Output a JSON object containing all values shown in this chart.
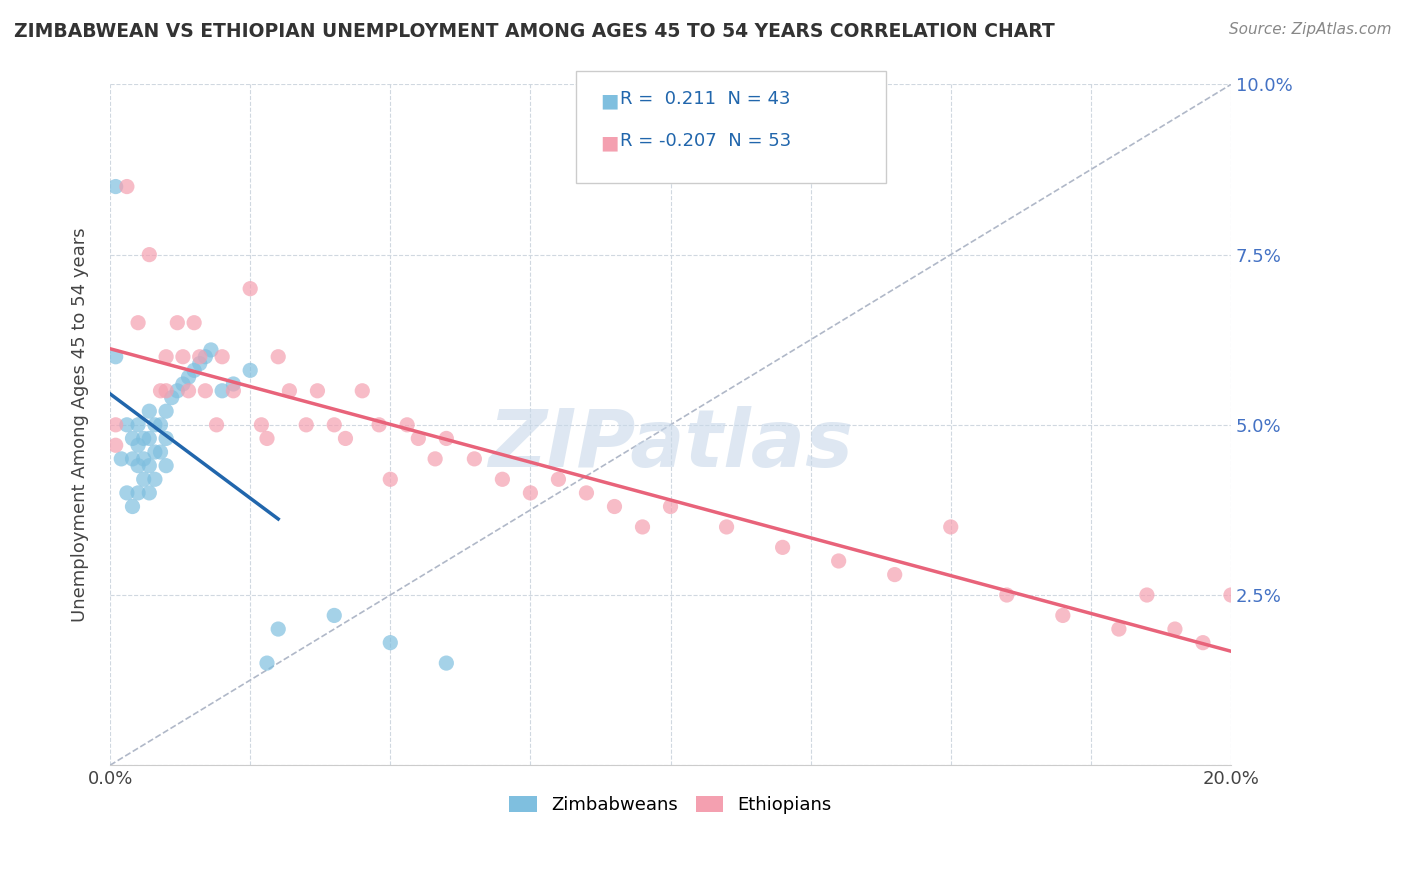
{
  "title": "ZIMBABWEAN VS ETHIOPIAN UNEMPLOYMENT AMONG AGES 45 TO 54 YEARS CORRELATION CHART",
  "source": "Source: ZipAtlas.com",
  "ylabel": "Unemployment Among Ages 45 to 54 years",
  "xlim": [
    0,
    0.2
  ],
  "ylim": [
    0,
    0.1
  ],
  "zimbabwe_color": "#7fbfdf",
  "ethiopia_color": "#f4a0b0",
  "zimbabwe_line_color": "#2166ac",
  "ethiopia_line_color": "#e8637a",
  "zimbabwe_R": 0.211,
  "zimbabwe_N": 43,
  "ethiopia_R": -0.207,
  "ethiopia_N": 53,
  "watermark_color": "#c8d8ea",
  "zimbabwe_x": [
    0.001,
    0.001,
    0.002,
    0.003,
    0.003,
    0.004,
    0.004,
    0.004,
    0.005,
    0.005,
    0.005,
    0.005,
    0.006,
    0.006,
    0.006,
    0.007,
    0.007,
    0.007,
    0.007,
    0.008,
    0.008,
    0.008,
    0.009,
    0.009,
    0.01,
    0.01,
    0.01,
    0.011,
    0.012,
    0.013,
    0.014,
    0.015,
    0.016,
    0.017,
    0.018,
    0.02,
    0.022,
    0.025,
    0.028,
    0.03,
    0.04,
    0.05,
    0.06
  ],
  "zimbabwe_y": [
    0.085,
    0.06,
    0.045,
    0.05,
    0.04,
    0.048,
    0.045,
    0.038,
    0.05,
    0.047,
    0.044,
    0.04,
    0.048,
    0.045,
    0.042,
    0.052,
    0.048,
    0.044,
    0.04,
    0.05,
    0.046,
    0.042,
    0.05,
    0.046,
    0.052,
    0.048,
    0.044,
    0.054,
    0.055,
    0.056,
    0.057,
    0.058,
    0.059,
    0.06,
    0.061,
    0.055,
    0.056,
    0.058,
    0.015,
    0.02,
    0.022,
    0.018,
    0.015
  ],
  "ethiopia_x": [
    0.001,
    0.001,
    0.003,
    0.005,
    0.007,
    0.009,
    0.01,
    0.01,
    0.012,
    0.013,
    0.014,
    0.015,
    0.016,
    0.017,
    0.019,
    0.02,
    0.022,
    0.025,
    0.027,
    0.028,
    0.03,
    0.032,
    0.035,
    0.037,
    0.04,
    0.042,
    0.045,
    0.048,
    0.05,
    0.053,
    0.055,
    0.058,
    0.06,
    0.065,
    0.07,
    0.075,
    0.08,
    0.085,
    0.09,
    0.095,
    0.1,
    0.11,
    0.12,
    0.13,
    0.14,
    0.15,
    0.16,
    0.17,
    0.18,
    0.185,
    0.19,
    0.195,
    0.2
  ],
  "ethiopia_y": [
    0.05,
    0.047,
    0.085,
    0.065,
    0.075,
    0.055,
    0.06,
    0.055,
    0.065,
    0.06,
    0.055,
    0.065,
    0.06,
    0.055,
    0.05,
    0.06,
    0.055,
    0.07,
    0.05,
    0.048,
    0.06,
    0.055,
    0.05,
    0.055,
    0.05,
    0.048,
    0.055,
    0.05,
    0.042,
    0.05,
    0.048,
    0.045,
    0.048,
    0.045,
    0.042,
    0.04,
    0.042,
    0.04,
    0.038,
    0.035,
    0.038,
    0.035,
    0.032,
    0.03,
    0.028,
    0.035,
    0.025,
    0.022,
    0.02,
    0.025,
    0.02,
    0.018,
    0.025
  ]
}
